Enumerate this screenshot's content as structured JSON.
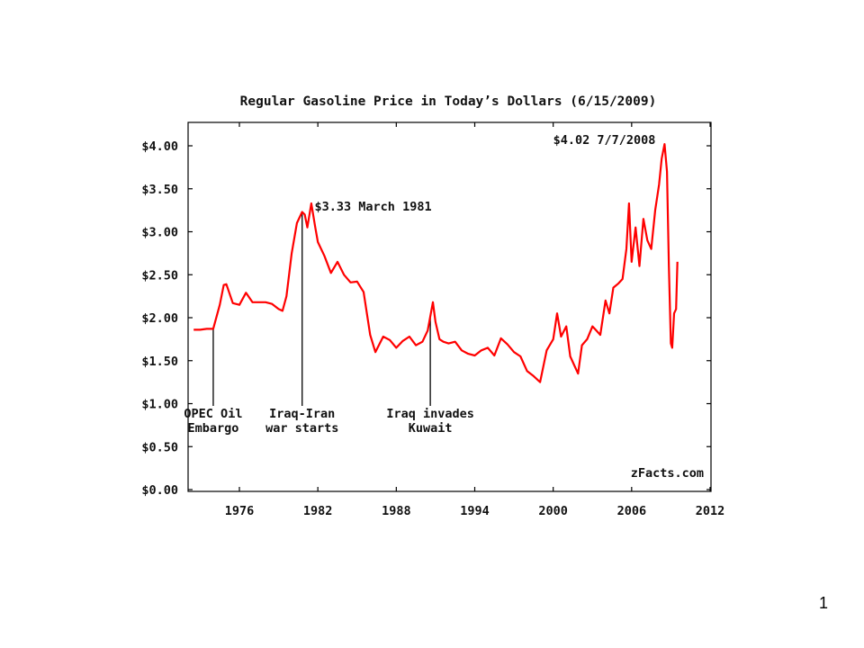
{
  "slide": {
    "number": "1"
  },
  "chart_data": {
    "type": "line",
    "title": "Regular Gasoline Price in Today’s Dollars (6/15/2009)",
    "xlabel": "",
    "ylabel": "",
    "xlim": [
      1972,
      2012
    ],
    "ylim": [
      0,
      4.25
    ],
    "x_ticks": [
      "1976",
      "1982",
      "1988",
      "1994",
      "2000",
      "2006",
      "2012"
    ],
    "y_ticks": [
      "$0.00",
      "$0.50",
      "$1.00",
      "$1.50",
      "$2.00",
      "$2.50",
      "$3.00",
      "$3.50",
      "$4.00"
    ],
    "grid": false,
    "legend": "none",
    "colors": {
      "line": "#ff0000",
      "frame": "#000000",
      "annotation_line": "#000000"
    },
    "watermark": "zFacts.com",
    "series": [
      {
        "x": [
          1972.5,
          1973.0,
          1973.5,
          1974.0,
          1974.5,
          1974.8,
          1975.0,
          1975.5,
          1976.0,
          1976.5,
          1977.0,
          1977.5,
          1978.0,
          1978.5,
          1979.0,
          1979.3,
          1979.6,
          1980.0,
          1980.4,
          1980.8,
          1981.0,
          1981.2,
          1981.5,
          1981.8,
          1982.0,
          1982.5,
          1983.0,
          1983.5,
          1984.0,
          1984.5,
          1985.0,
          1985.5,
          1986.0,
          1986.4,
          1987.0,
          1987.5,
          1988.0,
          1988.5,
          1989.0,
          1989.5,
          1990.0,
          1990.4,
          1990.8,
          1991.0,
          1991.3,
          1991.6,
          1992.0,
          1992.5,
          1993.0,
          1993.5,
          1994.0,
          1994.5,
          1995.0,
          1995.5,
          1996.0,
          1996.5,
          1997.0,
          1997.5,
          1998.0,
          1998.5,
          1999.0,
          1999.5,
          2000.0,
          2000.3,
          2000.6,
          2001.0,
          2001.3,
          2001.6,
          2001.9,
          2002.2,
          2002.6,
          2003.0,
          2003.3,
          2003.6,
          2004.0,
          2004.3,
          2004.6,
          2005.0,
          2005.3,
          2005.6,
          2005.8,
          2006.0,
          2006.3,
          2006.6,
          2006.9,
          2007.2,
          2007.5,
          2007.8,
          2008.1,
          2008.3,
          2008.52,
          2008.7,
          2008.85,
          2009.0,
          2009.1,
          2009.25,
          2009.4,
          2009.5
        ],
        "y": [
          1.86,
          1.86,
          1.87,
          1.87,
          2.15,
          2.38,
          2.39,
          2.17,
          2.15,
          2.29,
          2.18,
          2.18,
          2.18,
          2.16,
          2.1,
          2.08,
          2.25,
          2.75,
          3.1,
          3.23,
          3.2,
          3.05,
          3.33,
          3.05,
          2.88,
          2.72,
          2.52,
          2.65,
          2.5,
          2.41,
          2.42,
          2.3,
          1.8,
          1.6,
          1.78,
          1.74,
          1.65,
          1.73,
          1.78,
          1.68,
          1.72,
          1.85,
          2.18,
          1.95,
          1.75,
          1.72,
          1.7,
          1.72,
          1.62,
          1.58,
          1.56,
          1.62,
          1.65,
          1.56,
          1.76,
          1.69,
          1.6,
          1.55,
          1.38,
          1.32,
          1.25,
          1.62,
          1.75,
          2.05,
          1.78,
          1.9,
          1.55,
          1.45,
          1.35,
          1.68,
          1.75,
          1.9,
          1.85,
          1.8,
          2.2,
          2.05,
          2.35,
          2.4,
          2.45,
          2.8,
          3.33,
          2.65,
          3.05,
          2.6,
          3.15,
          2.9,
          2.8,
          3.25,
          3.55,
          3.85,
          4.02,
          3.7,
          2.6,
          1.7,
          1.65,
          2.05,
          2.1,
          2.65
        ]
      }
    ],
    "annotations": [
      {
        "text": "$4.02 7/7/2008",
        "x": 2008.52,
        "y": 4.02
      },
      {
        "text": "$3.33 March 1981",
        "x": 1981.2,
        "y": 3.33
      }
    ],
    "events": [
      {
        "x": 1974.0,
        "lines": [
          "OPEC Oil",
          "Embargo"
        ]
      },
      {
        "x": 1980.8,
        "lines": [
          "Iraq-Iran",
          "war starts"
        ]
      },
      {
        "x": 1990.6,
        "lines": [
          "Iraq invades",
          "Kuwait"
        ]
      }
    ]
  }
}
